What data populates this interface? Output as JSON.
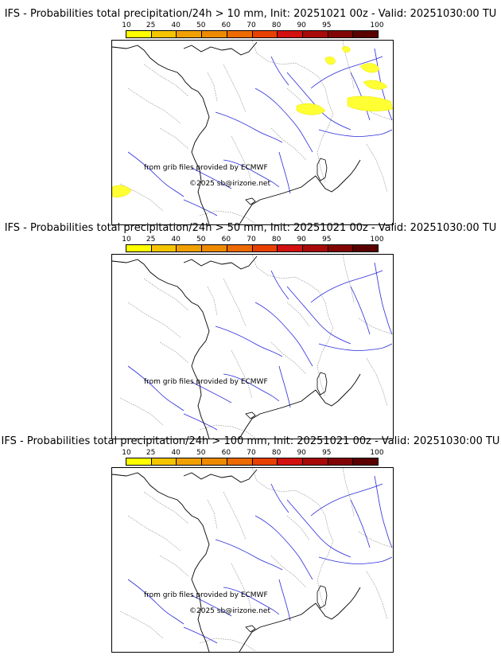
{
  "panels": [
    {
      "title": "IFS - Probabilities total precipitation/24h > 10 mm, Init: 20251021 00z - Valid: 20251030:00 TU",
      "threshold": "10 mm",
      "precip_areas": [
        "north-east",
        "alpine-north",
        "south-west-coast"
      ],
      "credit_grib": "from grib files provided by ECMWF",
      "credit_copy": "©2025 sb@irizone.net"
    },
    {
      "title": "IFS - Probabilities total precipitation/24h > 50 mm, Init: 20251021 00z - Valid: 20251030:00 TU",
      "threshold": "50 mm",
      "precip_areas": [],
      "credit_grib": "from grib files provided by ECMWF",
      "credit_copy": ""
    },
    {
      "title": "IFS - Probabilities total precipitation/24h > 100 mm, Init: 20251021 00z - Valid: 20251030:00 TU",
      "threshold": "100 mm",
      "precip_areas": [],
      "credit_grib": "from grib files provided by ECMWF",
      "credit_copy": "©2025 sb@irizone.net"
    }
  ],
  "colorbar": {
    "ticks": [
      "10",
      "25",
      "40",
      "50",
      "60",
      "70",
      "80",
      "90",
      "95",
      "100"
    ],
    "colors": [
      "#ffff00",
      "#f5c400",
      "#f0a000",
      "#ee8a00",
      "#ec6a00",
      "#e84000",
      "#d21010",
      "#a80a0a",
      "#820505",
      "#5a0000"
    ]
  },
  "style": {
    "coast": "#000000",
    "rivers": "#2b2bdc",
    "borders": "#9a9a9a",
    "precip": "#ffff33"
  }
}
